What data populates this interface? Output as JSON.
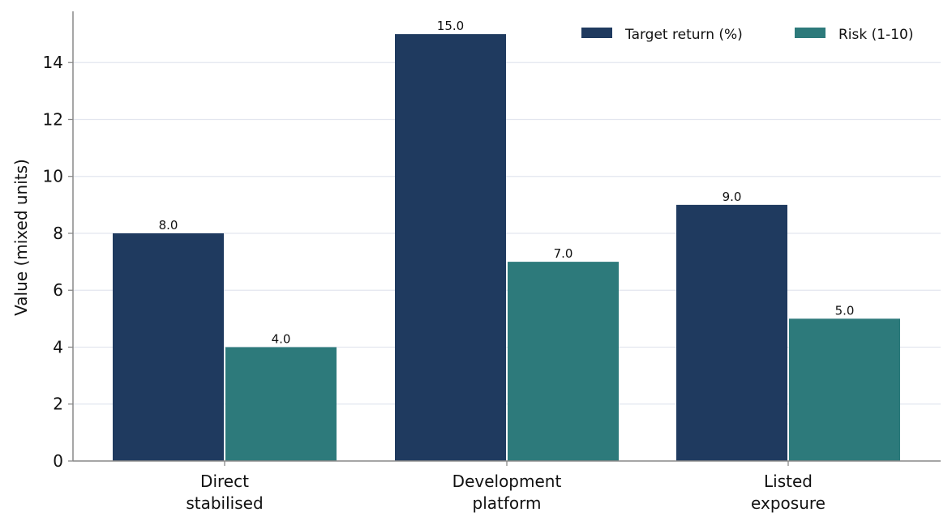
{
  "chart_data": {
    "type": "bar",
    "categories": [
      [
        "Direct",
        "stabilised"
      ],
      [
        "Development",
        "platform"
      ],
      [
        "Listed",
        "exposure"
      ]
    ],
    "series": [
      {
        "name": "Target return (%)",
        "values": [
          8.0,
          15.0,
          9.0
        ],
        "color": "#1f3a5f"
      },
      {
        "name": "Risk (1-10)",
        "values": [
          4.0,
          7.0,
          5.0
        ],
        "color": "#2d7a7b"
      }
    ],
    "title": "",
    "xlabel": "",
    "ylabel": "Value (mixed units)",
    "ylim": [
      0,
      15.8
    ],
    "yticks": [
      0,
      2,
      4,
      6,
      8,
      10,
      12,
      14
    ],
    "grid": "horizontal",
    "grid_color": "#e3e6ef",
    "axis_color": "#888888",
    "legend_position": "top-right",
    "data_labels": true
  }
}
